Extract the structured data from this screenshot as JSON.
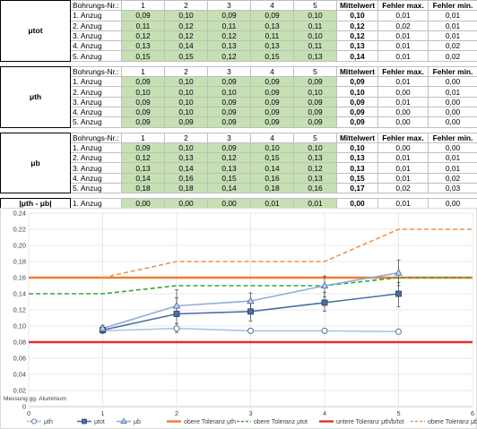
{
  "tables": [
    {
      "symbol": "μtot",
      "header": {
        "label": "Bohrungs-Nr.:",
        "cols": [
          "1",
          "2",
          "3",
          "4",
          "5"
        ],
        "mean": "Mittelwert",
        "fmax": "Fehler max.",
        "fmin": "Fehler min."
      },
      "rows": [
        {
          "label": "1. Anzug",
          "vals": [
            "0,09",
            "0,10",
            "0,09",
            "0,09",
            "0,10"
          ],
          "mean": "0,10",
          "fmax": "0,01",
          "fmin": "0,01"
        },
        {
          "label": "2. Anzug",
          "vals": [
            "0,11",
            "0,12",
            "0,11",
            "0,13",
            "0,11"
          ],
          "mean": "0,12",
          "fmax": "0,02",
          "fmin": "0,01"
        },
        {
          "label": "3. Anzug",
          "vals": [
            "0,12",
            "0,12",
            "0,12",
            "0,11",
            "0,10"
          ],
          "mean": "0,12",
          "fmax": "0,01",
          "fmin": "0,01"
        },
        {
          "label": "4. Anzug",
          "vals": [
            "0,13",
            "0,14",
            "0,13",
            "0,13",
            "0,11"
          ],
          "mean": "0,13",
          "fmax": "0,01",
          "fmin": "0,02"
        },
        {
          "label": "5. Anzug",
          "vals": [
            "0,15",
            "0,15",
            "0,12",
            "0,15",
            "0,13"
          ],
          "mean": "0,14",
          "fmax": "0,01",
          "fmin": "0,02"
        }
      ]
    },
    {
      "symbol": "μth",
      "header": {
        "label": "Bohrungs-Nr.:",
        "cols": [
          "1",
          "2",
          "3",
          "4",
          "5"
        ],
        "mean": "Mittelwert",
        "fmax": "Fehler max.",
        "fmin": "Fehler min."
      },
      "rows": [
        {
          "label": "1. Anzug",
          "vals": [
            "0,09",
            "0,10",
            "0,09",
            "0,09",
            "0,09"
          ],
          "mean": "0,09",
          "fmax": "0,01",
          "fmin": "0,00"
        },
        {
          "label": "2. Anzug",
          "vals": [
            "0,10",
            "0,10",
            "0,10",
            "0,09",
            "0,10"
          ],
          "mean": "0,10",
          "fmax": "0,00",
          "fmin": "0,01"
        },
        {
          "label": "3. Anzug",
          "vals": [
            "0,09",
            "0,10",
            "0,09",
            "0,09",
            "0,09"
          ],
          "mean": "0,09",
          "fmax": "0,01",
          "fmin": "0,00"
        },
        {
          "label": "4. Anzug",
          "vals": [
            "0,09",
            "0,10",
            "0,09",
            "0,09",
            "0,09"
          ],
          "mean": "0,09",
          "fmax": "0,00",
          "fmin": "0,00"
        },
        {
          "label": "5. Anzug",
          "vals": [
            "0,09",
            "0,09",
            "0,09",
            "0,09",
            "0,09"
          ],
          "mean": "0,09",
          "fmax": "0,00",
          "fmin": "0,00"
        }
      ]
    },
    {
      "symbol": "μb",
      "header": {
        "label": "Bohrungs-Nr.:",
        "cols": [
          "1",
          "2",
          "3",
          "4",
          "5"
        ],
        "mean": "Mittelwert",
        "fmax": "Fehler max.",
        "fmin": "Fehler min."
      },
      "rows": [
        {
          "label": "1. Anzug",
          "vals": [
            "0,09",
            "0,10",
            "0,09",
            "0,10",
            "0,10"
          ],
          "mean": "0,10",
          "fmax": "0,00",
          "fmin": "0,00"
        },
        {
          "label": "2. Anzug",
          "vals": [
            "0,12",
            "0,13",
            "0,12",
            "0,15",
            "0,13"
          ],
          "mean": "0,13",
          "fmax": "0,01",
          "fmin": "0,01"
        },
        {
          "label": "3. Anzug",
          "vals": [
            "0,13",
            "0,14",
            "0,13",
            "0,14",
            "0,12"
          ],
          "mean": "0,13",
          "fmax": "0,01",
          "fmin": "0,01"
        },
        {
          "label": "4. Anzug",
          "vals": [
            "0,14",
            "0,16",
            "0,15",
            "0,16",
            "0,13"
          ],
          "mean": "0,15",
          "fmax": "0,01",
          "fmin": "0,02"
        },
        {
          "label": "5. Anzug",
          "vals": [
            "0,18",
            "0,18",
            "0,14",
            "0,18",
            "0,16"
          ],
          "mean": "0,17",
          "fmax": "0,02",
          "fmin": "0,03"
        }
      ]
    }
  ],
  "diff_row": {
    "symbol": "|μth - μb|",
    "label": "1. Anzug",
    "vals": [
      "0,00",
      "0,00",
      "0,00",
      "0,01",
      "0,01"
    ],
    "mean": "0,00",
    "fmax": "0,01",
    "fmin": "0,00"
  },
  "chart_data": {
    "type": "line",
    "title": "",
    "xlabel": "",
    "ylabel": "",
    "annotation": "Messung gg. Aluminium",
    "xlim": [
      0,
      6
    ],
    "ylim": [
      0,
      0.24
    ],
    "xticks": [
      "0",
      "1",
      "2",
      "3",
      "4",
      "5",
      "6"
    ],
    "yticks": [
      "0",
      "0,02",
      "0,04",
      "0,06",
      "0,08",
      "0,10",
      "0,12",
      "0,14",
      "0,16",
      "0,18",
      "0,20",
      "0,22",
      "0,24"
    ],
    "grid": true,
    "legend_position": "bottom",
    "series": [
      {
        "name": "μth",
        "x": [
          1,
          2,
          3,
          4,
          5
        ],
        "y": [
          0.094,
          0.097,
          0.094,
          0.094,
          0.093
        ],
        "err_up": [
          0.004,
          0.006,
          0.003,
          0.002,
          0.002
        ],
        "err_down": [
          0.003,
          0.005,
          0.003,
          0.002,
          0.002
        ],
        "color": "#a9c4e6",
        "marker": "circle",
        "style": "solid"
      },
      {
        "name": "μtot",
        "x": [
          1,
          2,
          3,
          4,
          5
        ],
        "y": [
          0.095,
          0.115,
          0.118,
          0.129,
          0.14
        ],
        "err_up": [
          0.004,
          0.03,
          0.01,
          0.013,
          0.014
        ],
        "err_down": [
          0.003,
          0.012,
          0.012,
          0.011,
          0.016
        ],
        "color": "#4a6fa5",
        "marker": "square",
        "style": "solid"
      },
      {
        "name": "μb",
        "x": [
          1,
          2,
          3,
          4,
          5
        ],
        "y": [
          0.097,
          0.125,
          0.131,
          0.15,
          0.166
        ],
        "err_up": [
          0.004,
          0.01,
          0.01,
          0.012,
          0.016
        ],
        "err_down": [
          0.003,
          0.01,
          0.01,
          0.014,
          0.016
        ],
        "color": "#93acd6",
        "marker": "triangle",
        "style": "solid"
      },
      {
        "name": "obere Toleranz μth",
        "x": [
          0,
          6
        ],
        "y": [
          0.16,
          0.16
        ],
        "color": "#ed7d31",
        "style": "solid-thick"
      },
      {
        "name": "obere Toleranz μtot",
        "x": [
          0,
          1,
          2,
          4,
          5,
          6
        ],
        "y": [
          0.14,
          0.14,
          0.15,
          0.15,
          0.16,
          0.16
        ],
        "color": "#38a53e",
        "style": "dashed"
      },
      {
        "name": "untere Toleranz μth/b/tot",
        "x": [
          0,
          6
        ],
        "y": [
          0.08,
          0.08
        ],
        "color": "#e03030",
        "style": "solid-thick"
      },
      {
        "name": "obere Toleranz μb",
        "x": [
          1,
          2,
          4,
          5,
          6
        ],
        "y": [
          0.16,
          0.18,
          0.18,
          0.22,
          0.22
        ],
        "color": "#f0924d",
        "style": "dashed"
      }
    ]
  }
}
